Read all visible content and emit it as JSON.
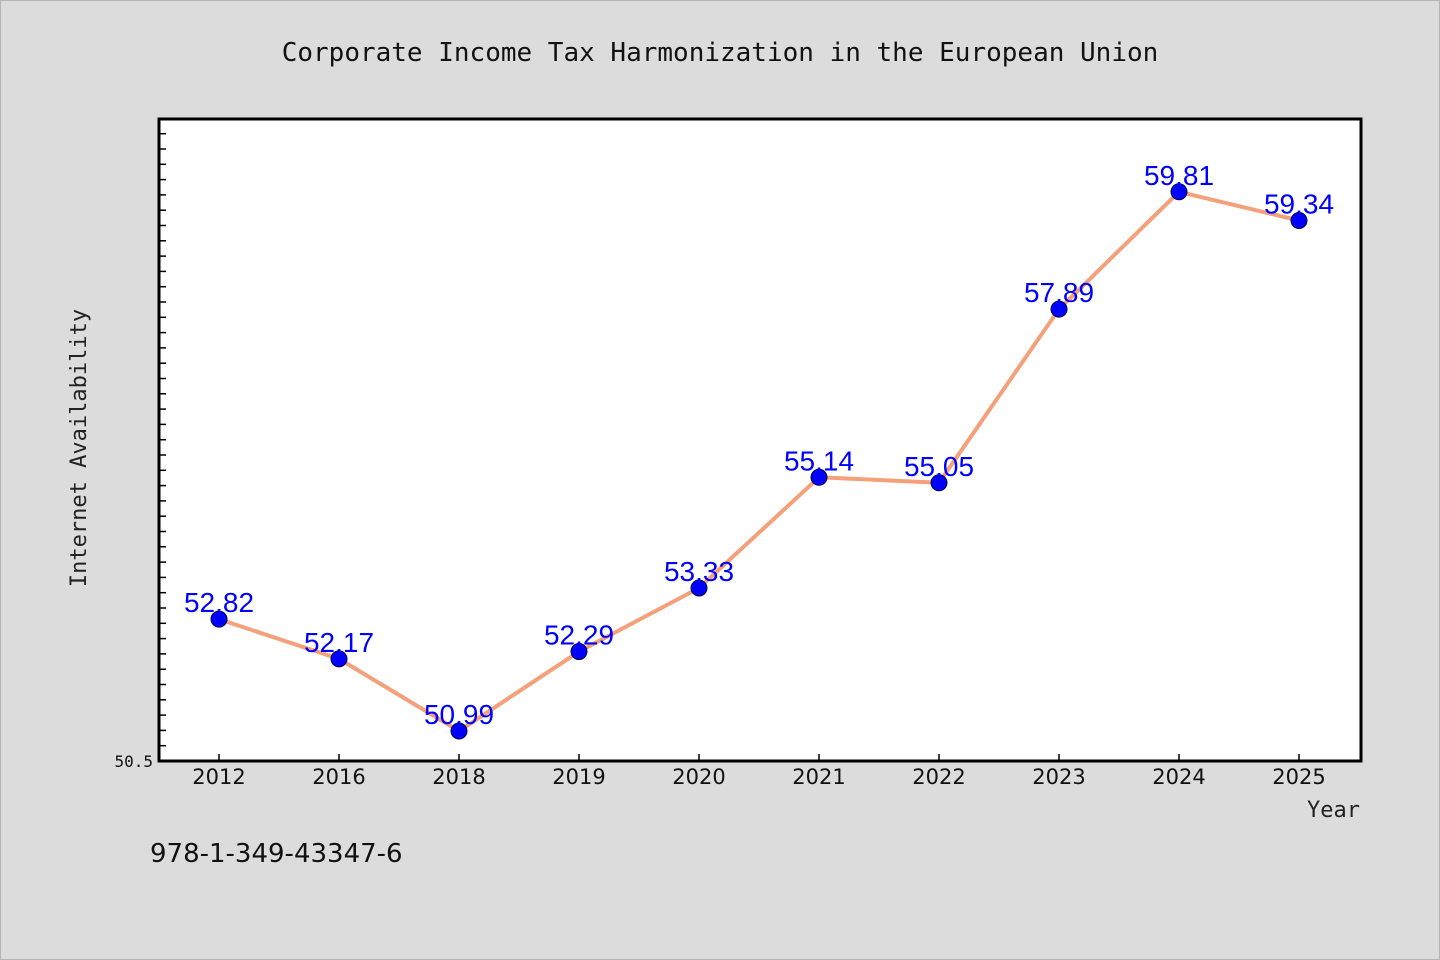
{
  "chart_data": {
    "type": "line",
    "title": "Corporate Income Tax Harmonization in the European Union",
    "xlabel": "Year",
    "ylabel": "Internet Availability",
    "categories": [
      "2012",
      "2016",
      "2018",
      "2019",
      "2020",
      "2021",
      "2022",
      "2023",
      "2024",
      "2025"
    ],
    "series": [
      {
        "values": [
          52.82,
          52.17,
          50.99,
          52.29,
          53.33,
          55.14,
          55.05,
          57.89,
          59.81,
          59.34
        ],
        "labels": [
          "52.82",
          "52.17",
          "50.99",
          "52.29",
          "53.33",
          "55.14",
          "55.05",
          "57.89",
          "59.81",
          "59.34"
        ],
        "line_color": "#f4a07a",
        "marker_color": "#0000ff"
      }
    ],
    "ylim": [
      50.5,
      61.0
    ],
    "ytick_labels": [
      "50.5"
    ],
    "grid": false,
    "legend": "none"
  },
  "footer": {
    "id_text": "978-1-349-43347-6"
  },
  "colors": {
    "background": "#dcdcdc",
    "plot_background": "#ffffff",
    "axis": "#000000",
    "data_label": "#0000ff"
  }
}
